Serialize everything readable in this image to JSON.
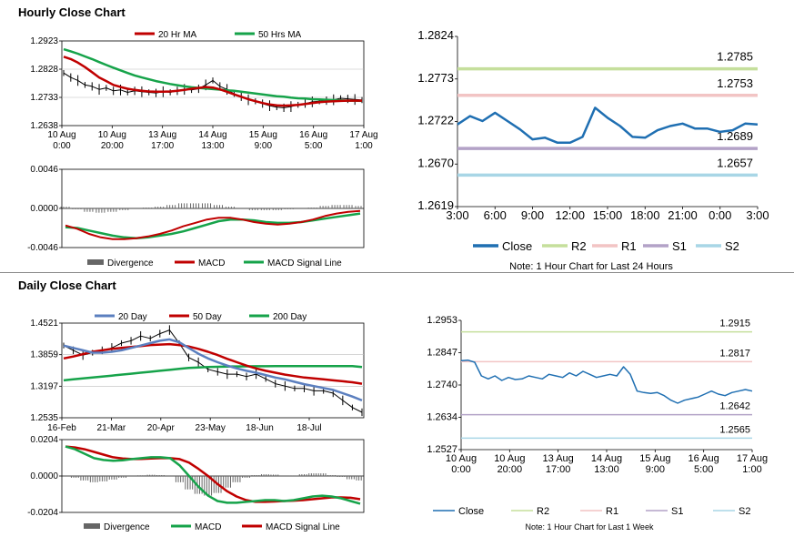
{
  "sections": {
    "hourly_title": "Hourly Close Chart",
    "daily_title": "Daily Close Chart"
  },
  "colors": {
    "red": "#c00000",
    "green": "#16a34a",
    "blue": "#1f6fb2",
    "price": "#000000",
    "grey": "#666666",
    "r2": "#c5df9c",
    "r1": "#f2c4c4",
    "s1": "#b3a2c7",
    "s2": "#a8d6e6",
    "ma20d": "#5b7fbf"
  },
  "chart_data": [
    {
      "id": "hourly_price",
      "type": "line",
      "legend": [
        "20 Hr MA",
        "50 Hrs MA"
      ],
      "ylim": [
        1.2638,
        1.2923
      ],
      "yticks": [
        "1.2923",
        "1.2828",
        "1.2733",
        "1.2638"
      ],
      "xticks": [
        [
          "10 Aug",
          "0:00"
        ],
        [
          "10 Aug",
          "20:00"
        ],
        [
          "13 Aug",
          "17:00"
        ],
        [
          "14 Aug",
          "13:00"
        ],
        [
          "15 Aug",
          "9:00"
        ],
        [
          "16 Aug",
          "5:00"
        ],
        [
          "17 Aug",
          "1:00"
        ]
      ],
      "series": [
        {
          "name": "Price",
          "values": [
            1.2815,
            1.28,
            1.279,
            1.2775,
            1.277,
            1.276,
            1.2765,
            1.2755,
            1.2758,
            1.275,
            1.2755,
            1.2752,
            1.275,
            1.2748,
            1.2752,
            1.275,
            1.2755,
            1.276,
            1.2758,
            1.2762,
            1.2775,
            1.279,
            1.277,
            1.276,
            1.2745,
            1.2735,
            1.2725,
            1.272,
            1.2712,
            1.2705,
            1.27,
            1.2698,
            1.2702,
            1.2708,
            1.2712,
            1.2718,
            1.272,
            1.2722,
            1.2725,
            1.273,
            1.2728,
            1.2726,
            1.2724
          ]
        },
        {
          "name": "20 Hr MA",
          "values": [
            1.287,
            1.2862,
            1.285,
            1.2835,
            1.2818,
            1.28,
            1.2788,
            1.2775,
            1.2768,
            1.2762,
            1.2758,
            1.2755,
            1.2753,
            1.2752,
            1.2752,
            1.2753,
            1.2755,
            1.2758,
            1.2762,
            1.2765,
            1.2768,
            1.2766,
            1.276,
            1.2752,
            1.2743,
            1.2735,
            1.2727,
            1.272,
            1.2714,
            1.2709,
            1.2706,
            1.2705,
            1.2706,
            1.2708,
            1.2711,
            1.2714,
            1.2717,
            1.2719,
            1.272,
            1.2721,
            1.2722,
            1.2722,
            1.2722
          ]
        },
        {
          "name": "50 Hrs MA",
          "values": [
            1.2895,
            1.2888,
            1.288,
            1.2871,
            1.2862,
            1.2852,
            1.2842,
            1.2833,
            1.2824,
            1.2815,
            1.2807,
            1.28,
            1.2794,
            1.2788,
            1.2783,
            1.2778,
            1.2774,
            1.277,
            1.2767,
            1.2765,
            1.2763,
            1.2761,
            1.2759,
            1.2757,
            1.2755,
            1.2752,
            1.2749,
            1.2746,
            1.2743,
            1.274,
            1.2737,
            1.2735,
            1.2732,
            1.273,
            1.2729,
            1.2727,
            1.2726,
            1.2725,
            1.2724,
            1.2723,
            1.2722,
            1.2722,
            1.2721
          ]
        }
      ]
    },
    {
      "id": "hourly_macd",
      "type": "line",
      "legend": [
        "Divergence",
        "MACD",
        "MACD Signal Line"
      ],
      "ylim": [
        -0.0046,
        0.0046
      ],
      "yticks": [
        "0.0046",
        "0.0000",
        "-0.0046"
      ],
      "series": [
        {
          "name": "MACD",
          "values": [
            -0.002,
            -0.0024,
            -0.003,
            -0.0034,
            -0.0036,
            -0.0036,
            -0.0035,
            -0.0033,
            -0.003,
            -0.0026,
            -0.0021,
            -0.0017,
            -0.0013,
            -0.0011,
            -0.0011,
            -0.0013,
            -0.0016,
            -0.0018,
            -0.0019,
            -0.0018,
            -0.0016,
            -0.0013,
            -0.0009,
            -0.0006,
            -0.0004,
            -0.0003
          ]
        },
        {
          "name": "MACD Signal Line",
          "values": [
            -0.0022,
            -0.0023,
            -0.0026,
            -0.0029,
            -0.0032,
            -0.0034,
            -0.0035,
            -0.0034,
            -0.0032,
            -0.003,
            -0.0027,
            -0.0023,
            -0.0019,
            -0.0015,
            -0.0013,
            -0.0013,
            -0.0014,
            -0.0016,
            -0.0017,
            -0.0017,
            -0.0016,
            -0.0014,
            -0.0012,
            -0.001,
            -0.0008,
            -0.0006
          ]
        },
        {
          "name": "Divergence",
          "values": [
            0.0002,
            -0.0001,
            -0.0004,
            -0.0005,
            -0.0004,
            -0.0002,
            0.0,
            0.0001,
            0.0002,
            0.0004,
            0.0006,
            0.0006,
            0.0006,
            0.0004,
            0.0002,
            0.0,
            -0.0002,
            -0.0002,
            -0.0002,
            -0.0001,
            0.0,
            0.0001,
            0.0003,
            0.0004,
            0.0004,
            0.0003
          ]
        }
      ]
    },
    {
      "id": "hourly_levels",
      "type": "line",
      "title": "Note: 1 Hour Chart for Last 24 Hours",
      "legend": [
        "Close",
        "R2",
        "R1",
        "S1",
        "S2"
      ],
      "ylim": [
        1.2619,
        1.2824
      ],
      "yticks": [
        "1.2824",
        "1.2773",
        "1.2722",
        "1.2670",
        "1.2619"
      ],
      "xticks": [
        "3:00",
        "6:00",
        "9:00",
        "12:00",
        "15:00",
        "18:00",
        "21:00",
        "0:00",
        "3:00"
      ],
      "levels": {
        "R2": 1.2785,
        "R1": 1.2753,
        "S1": 1.2689,
        "S2": 1.2657
      },
      "level_labels": {
        "R2": "1.2785",
        "R1": "1.2753",
        "S1": "1.2689",
        "S2": "1.2657"
      },
      "series": [
        {
          "name": "Close",
          "values": [
            1.2718,
            1.2728,
            1.2722,
            1.2732,
            1.2722,
            1.2712,
            1.27,
            1.2702,
            1.2696,
            1.2696,
            1.2703,
            1.2738,
            1.2726,
            1.2716,
            1.2703,
            1.2702,
            1.2711,
            1.2716,
            1.2719,
            1.2713,
            1.2713,
            1.2709,
            1.2711,
            1.2719,
            1.2718
          ]
        }
      ]
    },
    {
      "id": "daily_price",
      "type": "line",
      "legend": [
        "20 Day",
        "50 Day",
        "200 Day"
      ],
      "ylim": [
        1.2535,
        1.4521
      ],
      "yticks": [
        "1.4521",
        "1.3859",
        "1.3197",
        "1.2535"
      ],
      "xticks": [
        "16-Feb",
        "21-Mar",
        "20-Apr",
        "23-May",
        "18-Jun",
        "18-Jul"
      ],
      "series": [
        {
          "name": "Price",
          "values": [
            1.405,
            1.395,
            1.385,
            1.39,
            1.395,
            1.4,
            1.41,
            1.415,
            1.425,
            1.42,
            1.43,
            1.4376,
            1.41,
            1.38,
            1.37,
            1.355,
            1.35,
            1.345,
            1.345,
            1.34,
            1.345,
            1.335,
            1.325,
            1.32,
            1.315,
            1.315,
            1.31,
            1.31,
            1.305,
            1.29,
            1.275,
            1.265
          ]
        },
        {
          "name": "20 Day",
          "values": [
            1.405,
            1.4,
            1.395,
            1.39,
            1.39,
            1.392,
            1.395,
            1.4,
            1.405,
            1.41,
            1.415,
            1.418,
            1.412,
            1.4,
            1.388,
            1.378,
            1.37,
            1.363,
            1.357,
            1.352,
            1.348,
            1.343,
            1.338,
            1.334,
            1.329,
            1.324,
            1.32,
            1.316,
            1.312,
            1.305,
            1.298,
            1.29
          ]
        },
        {
          "name": "50 Day",
          "values": [
            1.378,
            1.382,
            1.387,
            1.392,
            1.395,
            1.398,
            1.4,
            1.402,
            1.404,
            1.406,
            1.407,
            1.408,
            1.406,
            1.403,
            1.398,
            1.392,
            1.385,
            1.377,
            1.37,
            1.363,
            1.357,
            1.352,
            1.348,
            1.344,
            1.341,
            1.338,
            1.336,
            1.334,
            1.332,
            1.33,
            1.328,
            1.325
          ]
        },
        {
          "name": "200 Day",
          "values": [
            1.332,
            1.334,
            1.336,
            1.338,
            1.34,
            1.342,
            1.344,
            1.346,
            1.348,
            1.35,
            1.352,
            1.354,
            1.356,
            1.358,
            1.359,
            1.36,
            1.3605,
            1.361,
            1.3612,
            1.3614,
            1.3615,
            1.3616,
            1.3617,
            1.3618,
            1.3619,
            1.362,
            1.362,
            1.362,
            1.362,
            1.362,
            1.362,
            1.36
          ]
        }
      ]
    },
    {
      "id": "daily_macd",
      "type": "line",
      "legend": [
        "Divergence",
        "MACD",
        "MACD Signal Line"
      ],
      "ylim": [
        -0.0204,
        0.0204
      ],
      "yticks": [
        "0.0204",
        "0.0000",
        "-0.0204"
      ],
      "series": [
        {
          "name": "MACD",
          "values": [
            0.0165,
            0.015,
            0.0125,
            0.01,
            0.009,
            0.0085,
            0.0088,
            0.0095,
            0.01,
            0.0105,
            0.0105,
            0.01,
            0.006,
            0.0,
            -0.006,
            -0.011,
            -0.014,
            -0.015,
            -0.015,
            -0.0145,
            -0.014,
            -0.0135,
            -0.0135,
            -0.014,
            -0.0135,
            -0.0125,
            -0.0115,
            -0.011,
            -0.0115,
            -0.0125,
            -0.014,
            -0.0155
          ]
        },
        {
          "name": "MACD Signal Line",
          "values": [
            0.0165,
            0.016,
            0.015,
            0.0135,
            0.012,
            0.0105,
            0.0098,
            0.0095,
            0.0096,
            0.0098,
            0.01,
            0.01,
            0.0095,
            0.0075,
            0.004,
            0.0,
            -0.0045,
            -0.0085,
            -0.0115,
            -0.0135,
            -0.0145,
            -0.0145,
            -0.0143,
            -0.014,
            -0.0138,
            -0.0135,
            -0.013,
            -0.0125,
            -0.012,
            -0.012,
            -0.0122,
            -0.013
          ]
        },
        {
          "name": "Divergence",
          "values": [
            0.0,
            -0.001,
            -0.0025,
            -0.0035,
            -0.003,
            -0.002,
            -0.001,
            0.0,
            0.0004,
            0.0007,
            0.0005,
            0.0,
            -0.0035,
            -0.0075,
            -0.01,
            -0.011,
            -0.0095,
            -0.0065,
            -0.0035,
            -0.001,
            0.0005,
            0.001,
            0.0008,
            0.0,
            0.0003,
            0.001,
            0.0015,
            0.0015,
            0.0005,
            -0.0005,
            -0.0018,
            -0.0025
          ]
        }
      ]
    },
    {
      "id": "daily_levels",
      "type": "line",
      "title": "Note: 1 Hour Chart for Last 1 Week",
      "legend": [
        "Close",
        "R2",
        "R1",
        "S1",
        "S2"
      ],
      "ylim": [
        1.2527,
        1.2953
      ],
      "yticks": [
        "1.2953",
        "1.2847",
        "1.2740",
        "1.2634",
        "1.2527"
      ],
      "xticks": [
        [
          "10 Aug",
          "0:00"
        ],
        [
          "10 Aug",
          "20:00"
        ],
        [
          "13 Aug",
          "17:00"
        ],
        [
          "14 Aug",
          "13:00"
        ],
        [
          "15 Aug",
          "9:00"
        ],
        [
          "16 Aug",
          "5:00"
        ],
        [
          "17 Aug",
          "1:00"
        ]
      ],
      "levels": {
        "R2": 1.2915,
        "R1": 1.2817,
        "S1": 1.2642,
        "S2": 1.2565
      },
      "level_labels": {
        "R2": "1.2915",
        "R1": "1.2817",
        "S1": "1.2642",
        "S2": "1.2565"
      },
      "series": [
        {
          "name": "Close",
          "values": [
            1.282,
            1.2822,
            1.2815,
            1.277,
            1.276,
            1.277,
            1.2755,
            1.2765,
            1.2758,
            1.276,
            1.277,
            1.2765,
            1.276,
            1.2775,
            1.277,
            1.2765,
            1.278,
            1.277,
            1.2785,
            1.2775,
            1.2765,
            1.277,
            1.2775,
            1.277,
            1.28,
            1.2775,
            1.272,
            1.2715,
            1.2712,
            1.2715,
            1.2705,
            1.269,
            1.268,
            1.269,
            1.2695,
            1.27,
            1.271,
            1.272,
            1.271,
            1.2705,
            1.2715,
            1.272,
            1.2725,
            1.272
          ]
        }
      ]
    }
  ]
}
